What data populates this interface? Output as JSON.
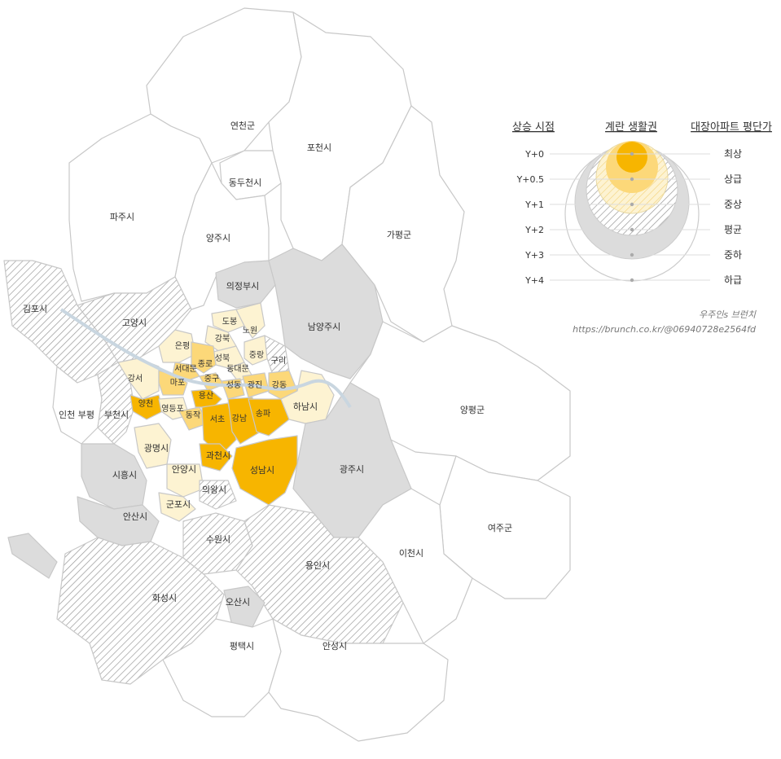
{
  "colors": {
    "outline": "#c8c8c8",
    "white": "#ffffff",
    "gray": "#dcdcdc",
    "hatch": "#9a9a9a",
    "orange": "#f7b500",
    "lightOrange": "#fcd879",
    "paleYellow": "#fdf3d2",
    "river": "#c9d6e0"
  },
  "legend": {
    "headers": {
      "timing": "상승 시점",
      "zone": "계란 생활권",
      "price": "대장아파트 평단가"
    },
    "rows": [
      {
        "timing": "Y+0",
        "price": "최상"
      },
      {
        "timing": "Y+0.5",
        "price": "상급"
      },
      {
        "timing": "Y+1",
        "price": "중상"
      },
      {
        "timing": "Y+2",
        "price": "평균"
      },
      {
        "timing": "Y+3",
        "price": "중하"
      },
      {
        "timing": "Y+4",
        "price": "하급"
      }
    ]
  },
  "credit": {
    "author": "우주인s 브런치",
    "url": "https://brunch.co.kr/@06940728e2564fd"
  },
  "regions": [
    {
      "id": "yeoncheon",
      "label": "연천군",
      "tier": "white"
    },
    {
      "id": "pocheon",
      "label": "포천시",
      "tier": "white"
    },
    {
      "id": "dongducheon",
      "label": "동두천시",
      "tier": "white"
    },
    {
      "id": "paju",
      "label": "파주시",
      "tier": "white"
    },
    {
      "id": "yangju",
      "label": "양주시",
      "tier": "white"
    },
    {
      "id": "gapyeong",
      "label": "가평군",
      "tier": "white"
    },
    {
      "id": "uijeongbu",
      "label": "의정부시",
      "tier": "gray"
    },
    {
      "id": "namyangju",
      "label": "남양주시",
      "tier": "gray"
    },
    {
      "id": "gimpo",
      "label": "김포시",
      "tier": "hatch"
    },
    {
      "id": "goyang",
      "label": "고양시",
      "tier": "hatch"
    },
    {
      "id": "incheon-bupyeong",
      "label": "인천 부평",
      "tier": "white"
    },
    {
      "id": "bucheon",
      "label": "부천시",
      "tier": "hatch"
    },
    {
      "id": "gangseo",
      "label": "강서",
      "tier": "pale"
    },
    {
      "id": "yangcheon",
      "label": "양천",
      "tier": "orange"
    },
    {
      "id": "eunpyeong",
      "label": "은평",
      "tier": "pale"
    },
    {
      "id": "dobong",
      "label": "도봉",
      "tier": "pale"
    },
    {
      "id": "nowon",
      "label": "노원",
      "tier": "pale"
    },
    {
      "id": "gangbuk",
      "label": "강북",
      "tier": "pale"
    },
    {
      "id": "seongbuk",
      "label": "성북",
      "tier": "pale"
    },
    {
      "id": "jongno",
      "label": "종로",
      "tier": "light"
    },
    {
      "id": "seodaemun",
      "label": "서대문",
      "tier": "light"
    },
    {
      "id": "jungnang",
      "label": "중랑",
      "tier": "pale"
    },
    {
      "id": "dongdaemun",
      "label": "동대문",
      "tier": "pale"
    },
    {
      "id": "guri",
      "label": "구리",
      "tier": "hatch"
    },
    {
      "id": "mapo",
      "label": "마포",
      "tier": "light"
    },
    {
      "id": "junggu",
      "label": "중구",
      "tier": "light"
    },
    {
      "id": "seongdong",
      "label": "성동",
      "tier": "light"
    },
    {
      "id": "gwangjin",
      "label": "광진",
      "tier": "light"
    },
    {
      "id": "gangdong",
      "label": "강동",
      "tier": "light"
    },
    {
      "id": "yongsan",
      "label": "용산",
      "tier": "orange"
    },
    {
      "id": "yeongdeungpo",
      "label": "영등포",
      "tier": "pale"
    },
    {
      "id": "dongjak",
      "label": "동작",
      "tier": "light"
    },
    {
      "id": "seocho",
      "label": "서초",
      "tier": "orange"
    },
    {
      "id": "gangnam",
      "label": "강남",
      "tier": "orange"
    },
    {
      "id": "songpa",
      "label": "송파",
      "tier": "orange"
    },
    {
      "id": "hanam",
      "label": "하남시",
      "tier": "pale"
    },
    {
      "id": "yangpyeong",
      "label": "양평군",
      "tier": "white"
    },
    {
      "id": "gwangmyeong",
      "label": "광명시",
      "tier": "pale"
    },
    {
      "id": "gwacheon",
      "label": "과천시",
      "tier": "orange"
    },
    {
      "id": "seongnam",
      "label": "성남시",
      "tier": "orange"
    },
    {
      "id": "gwangju",
      "label": "광주시",
      "tier": "gray"
    },
    {
      "id": "siheung",
      "label": "시흥시",
      "tier": "gray"
    },
    {
      "id": "anyang",
      "label": "안양시",
      "tier": "pale"
    },
    {
      "id": "uiwang",
      "label": "의왕시",
      "tier": "hatch"
    },
    {
      "id": "gunpo",
      "label": "군포시",
      "tier": "pale"
    },
    {
      "id": "ansan",
      "label": "안산시",
      "tier": "gray"
    },
    {
      "id": "yeoju",
      "label": "여주군",
      "tier": "white"
    },
    {
      "id": "suwon",
      "label": "수원시",
      "tier": "hatch"
    },
    {
      "id": "yongin",
      "label": "용인시",
      "tier": "hatch"
    },
    {
      "id": "icheon",
      "label": "이천시",
      "tier": "white"
    },
    {
      "id": "hwaseong",
      "label": "화성시",
      "tier": "hatch"
    },
    {
      "id": "osan",
      "label": "오산시",
      "tier": "gray"
    },
    {
      "id": "pyeongtaek",
      "label": "평택시",
      "tier": "white"
    },
    {
      "id": "anseong",
      "label": "안성시",
      "tier": "white"
    }
  ]
}
